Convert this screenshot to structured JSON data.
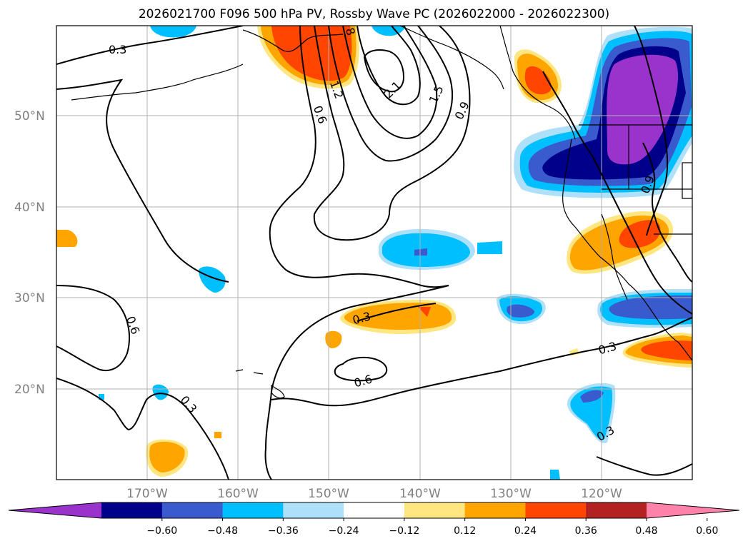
{
  "title": "2026021700 F096 500 hPa PV, Rossby Wave PC (2026022000 - 2026022300)",
  "lat_labels": [
    "50°N",
    "40°N",
    "30°N",
    "20°N"
  ],
  "lon_labels": [
    "170°W",
    "160°W",
    "150°W",
    "140°W",
    "130°W",
    "120°W"
  ],
  "contour_labels": [
    "0.3",
    "1.2",
    "0.6",
    "2.1",
    "1.5",
    "0.9",
    "0.9",
    "0.6",
    "0.3",
    "0.6",
    "0.3",
    "0.3",
    "0.3",
    "8"
  ],
  "colorbar": {
    "ticks": [
      "−0.60",
      "−0.48",
      "−0.36",
      "−0.24",
      "−0.12",
      "0.12",
      "0.24",
      "0.36",
      "0.48",
      "0.60"
    ],
    "colors": [
      "#9933cc",
      "#00008b",
      "#3a5bcd",
      "#00bfff",
      "#aee0fa",
      "#ffffff",
      "#ffe680",
      "#ffa500",
      "#ff4500",
      "#b22222",
      "#ff82ab"
    ]
  },
  "colors": {
    "contour": "#000000",
    "grid": "#b0b0b0",
    "coast": "#000000"
  }
}
